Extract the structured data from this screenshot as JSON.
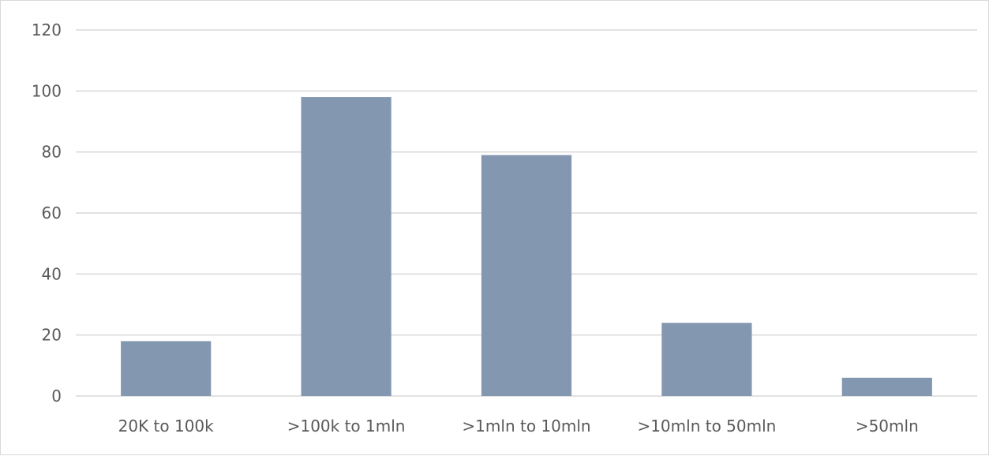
{
  "chart_data": {
    "type": "bar",
    "categories": [
      "20K to 100k",
      ">100k to 1mln",
      ">1mln to 10mln",
      ">10mln to 50mln",
      ">50mln"
    ],
    "values": [
      18,
      98,
      79,
      24,
      6
    ],
    "ylim": [
      0,
      120
    ],
    "yticks": [
      0,
      20,
      40,
      60,
      80,
      100,
      120
    ],
    "grid": true,
    "bar_color": "#8497b0",
    "grid_color": "#d9d9d9",
    "text_color": "#595959"
  }
}
